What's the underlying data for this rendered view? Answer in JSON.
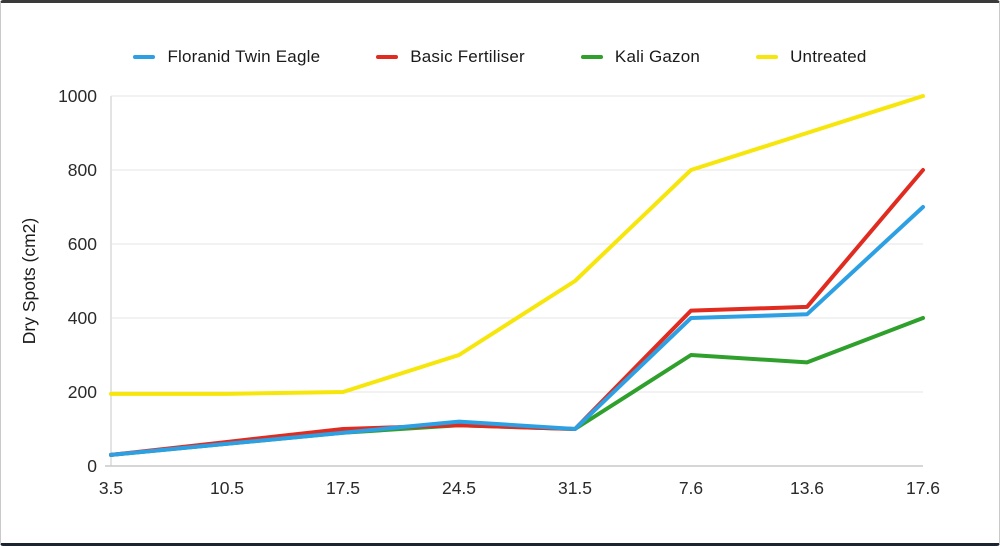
{
  "chart_data": {
    "type": "line",
    "title": "",
    "ylabel": "Dry Spots (cm2)",
    "xlabel": "",
    "ylim": [
      0,
      1000
    ],
    "yticks": [
      0,
      200,
      400,
      600,
      800,
      1000
    ],
    "grid": "horizontal",
    "legend_position": "top",
    "categories": [
      "3.5",
      "10.5",
      "17.5",
      "24.5",
      "31.5",
      "7.6",
      "13.6",
      "17.6"
    ],
    "series": [
      {
        "name": "Floranid Twin Eagle",
        "color": "#2D9FE3",
        "values": [
          30,
          60,
          90,
          120,
          100,
          400,
          410,
          700
        ]
      },
      {
        "name": "Basic Fertiliser",
        "color": "#E02B20",
        "values": [
          30,
          65,
          100,
          110,
          100,
          420,
          430,
          800
        ]
      },
      {
        "name": "Kali Gazon",
        "color": "#2FA02C",
        "values": [
          30,
          60,
          90,
          110,
          100,
          300,
          280,
          400
        ]
      },
      {
        "name": "Untreated",
        "color": "#F6E60B",
        "values": [
          195,
          195,
          200,
          300,
          500,
          800,
          900,
          1000
        ]
      }
    ]
  },
  "colors": {
    "grid_line": "#e6e6e6",
    "zero_axis": "#c9c9c9",
    "y_axis_line": "#dadada",
    "tick_text": "#2a2a2a"
  }
}
